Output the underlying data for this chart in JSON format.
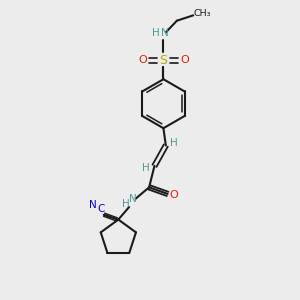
{
  "bg_color": "#ececec",
  "bond_color": "#1a1a1a",
  "N_color": "#4a9999",
  "O_color": "#dd2200",
  "S_color": "#bbaa00",
  "C_color": "#1a1a1a",
  "CN_color": "#0000cc",
  "figsize": [
    3.0,
    3.0
  ],
  "dpi": 100,
  "xlim": [
    0,
    10
  ],
  "ylim": [
    0,
    10
  ]
}
